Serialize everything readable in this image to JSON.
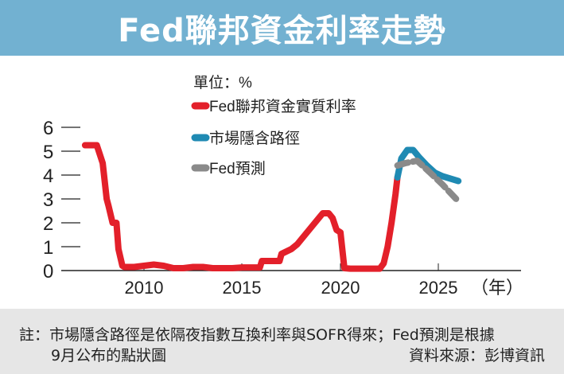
{
  "header": {
    "title": "Fed聯邦資金利率走勢"
  },
  "legend": {
    "unit": "單位：%",
    "items": [
      {
        "label": "Fed聯邦資金實質利率",
        "color": "#e3202a"
      },
      {
        "label": "市場隱含路徑",
        "color": "#1f8ab3"
      },
      {
        "label": "Fed預測",
        "color": "#8a8a8a"
      }
    ]
  },
  "axes": {
    "y_ticks": [
      "0",
      "1",
      "2",
      "3",
      "4",
      "5",
      "6"
    ],
    "x_ticks": [
      "2010",
      "2015",
      "2020",
      "2025"
    ],
    "x_unit": "（年）"
  },
  "footer": {
    "note_line1": "註：市場隱含路徑是依隔夜指數互換利率與SOFR得來；Fed預測是根據",
    "note_line2": "9月公布的點狀圖",
    "source": "資料來源：彭博資訊"
  },
  "chart_data": {
    "type": "line",
    "title": "Fed聯邦資金利率走勢",
    "xlabel": "（年）",
    "ylabel": "單位：%",
    "ylim": [
      0,
      6
    ],
    "xlim": [
      2006,
      2030
    ],
    "grid": false,
    "legend_position": "top-center",
    "series": [
      {
        "name": "Fed聯邦資金實質利率",
        "color": "#e3202a",
        "style": "solid",
        "x": [
          2007.0,
          2007.6,
          2007.9,
          2008.1,
          2008.2,
          2008.4,
          2008.6,
          2008.7,
          2008.9,
          2009.0,
          2009.5,
          2010.0,
          2010.5,
          2011.0,
          2011.5,
          2012.0,
          2012.5,
          2013.0,
          2013.5,
          2014.0,
          2014.5,
          2015.0,
          2015.9,
          2016.0,
          2016.9,
          2017.0,
          2017.5,
          2017.8,
          2018.0,
          2018.3,
          2018.6,
          2018.9,
          2019.1,
          2019.4,
          2019.6,
          2019.8,
          2020.0,
          2020.2,
          2020.5,
          2021.0,
          2021.5,
          2022.0,
          2022.2,
          2022.4,
          2022.6,
          2022.8,
          2022.9
        ],
        "values": [
          5.25,
          5.25,
          4.5,
          3.0,
          2.7,
          2.0,
          2.0,
          0.9,
          0.2,
          0.15,
          0.15,
          0.2,
          0.25,
          0.2,
          0.1,
          0.1,
          0.15,
          0.15,
          0.1,
          0.1,
          0.1,
          0.13,
          0.13,
          0.4,
          0.4,
          0.7,
          0.9,
          1.1,
          1.3,
          1.6,
          1.9,
          2.2,
          2.4,
          2.4,
          2.2,
          1.7,
          1.6,
          0.1,
          0.08,
          0.08,
          0.08,
          0.08,
          0.3,
          1.0,
          2.0,
          3.2,
          3.9
        ]
      },
      {
        "name": "市場隱含路徑",
        "color": "#1f8ab3",
        "style": "solid",
        "x": [
          2022.9,
          2023.1,
          2023.4,
          2023.7,
          2024.0,
          2024.4,
          2024.8,
          2025.2,
          2025.6,
          2026.0
        ],
        "values": [
          3.9,
          4.7,
          5.05,
          5.05,
          4.75,
          4.4,
          4.1,
          3.95,
          3.85,
          3.75
        ]
      },
      {
        "name": "Fed預測",
        "color": "#8a8a8a",
        "style": "dashed",
        "x": [
          2022.9,
          2023.3,
          2023.9,
          2024.5,
          2025.2,
          2026.0
        ],
        "values": [
          4.4,
          4.5,
          4.6,
          4.15,
          3.6,
          2.9
        ]
      }
    ]
  }
}
